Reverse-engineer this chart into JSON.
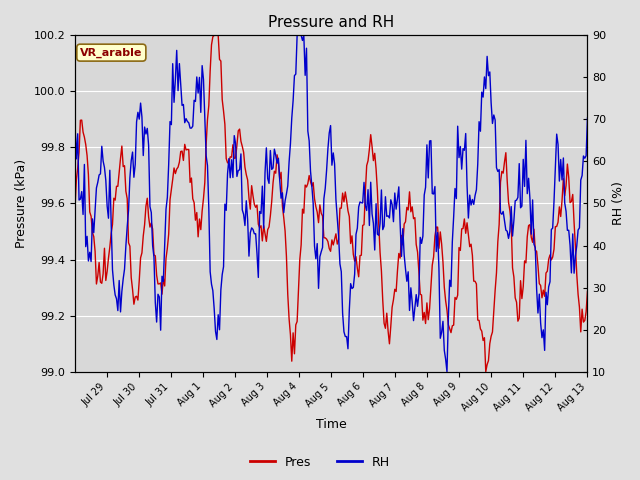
{
  "title": "Pressure and RH",
  "xlabel": "Time",
  "ylabel_left": "Pressure (kPa)",
  "ylabel_right": "RH (%)",
  "left_ylim": [
    99.0,
    100.2
  ],
  "right_ylim": [
    10,
    90
  ],
  "left_yticks": [
    99.0,
    99.2,
    99.4,
    99.6,
    99.8,
    100.0,
    100.2
  ],
  "right_yticks": [
    10,
    20,
    30,
    40,
    50,
    60,
    70,
    80,
    90
  ],
  "xtick_labels": [
    "Jul 29",
    "Jul 30",
    "Jul 31",
    "Aug 1",
    "Aug 2",
    "Aug 3",
    "Aug 4",
    "Aug 5",
    "Aug 6",
    "Aug 7",
    "Aug 8",
    "Aug 9",
    "Aug 10",
    "Aug 11",
    "Aug 12",
    "Aug 13"
  ],
  "location_label": "VR_arable",
  "pres_color": "#cc0000",
  "rh_color": "#0000cc",
  "bg_color": "#e0e0e0",
  "plot_bg_color": "#d8d8d8",
  "legend_pres": "Pres",
  "legend_rh": "RH",
  "title_fontsize": 11,
  "axis_label_fontsize": 9,
  "tick_fontsize": 8,
  "figsize": [
    6.4,
    4.8
  ],
  "dpi": 100
}
